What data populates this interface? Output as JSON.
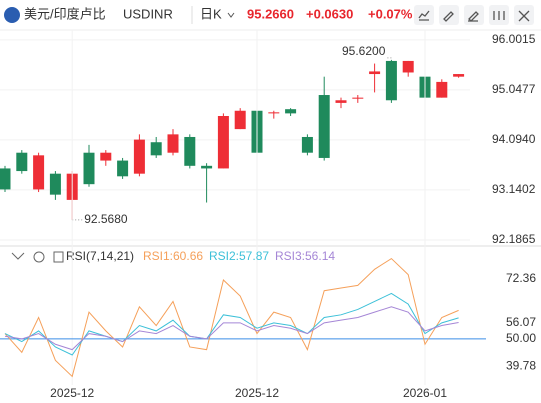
{
  "header": {
    "title": "美元/印度卢比",
    "symbol": "USDINR",
    "period": "日K",
    "price": "95.2660",
    "change": "+0.0630",
    "change_pct": "+0.07%"
  },
  "chart_data": [
    {
      "type": "candlestick",
      "categories": [
        null,
        null,
        null,
        null,
        "2025-12",
        null,
        null,
        null,
        null,
        null,
        null,
        null,
        null,
        null,
        null,
        "2025-12",
        null,
        null,
        null,
        null,
        null,
        null,
        null,
        null,
        null,
        "2026-01",
        null,
        null
      ],
      "open": [
        93.55,
        93.85,
        93.15,
        93.45,
        92.95,
        93.85,
        93.7,
        93.7,
        93.45,
        94.05,
        93.85,
        94.15,
        93.6,
        93.55,
        94.3,
        94.65,
        94.6,
        94.68,
        94.15,
        94.95,
        94.8,
        94.88,
        95.35,
        95.6,
        95.38,
        95.3,
        94.9,
        95.3
      ],
      "high": [
        93.6,
        93.9,
        93.85,
        93.5,
        93.5,
        94.0,
        93.9,
        93.75,
        94.2,
        94.15,
        94.3,
        94.2,
        93.65,
        94.6,
        94.7,
        94.9,
        94.65,
        94.7,
        94.2,
        95.3,
        94.9,
        94.95,
        95.55,
        95.62,
        95.6,
        95.35,
        95.25,
        95.35
      ],
      "low": [
        93.1,
        93.45,
        93.1,
        92.95,
        92.568,
        93.2,
        93.6,
        93.35,
        93.4,
        93.75,
        93.8,
        93.55,
        92.9,
        93.55,
        94.3,
        93.8,
        94.5,
        94.55,
        93.8,
        93.7,
        94.7,
        94.8,
        95.0,
        94.8,
        95.3,
        94.85,
        94.9,
        95.28
      ],
      "close": [
        93.15,
        93.5,
        93.8,
        93.05,
        93.45,
        93.25,
        93.85,
        93.4,
        94.1,
        93.8,
        94.2,
        93.6,
        93.55,
        94.55,
        94.65,
        93.85,
        94.62,
        94.6,
        93.85,
        93.75,
        94.85,
        94.9,
        95.4,
        94.85,
        95.6,
        94.9,
        95.2,
        95.35
      ],
      "up_color": "#ee2e36",
      "down_color": "#1f8a5c",
      "ylim": [
        92.09,
        96.19
      ],
      "yticks": [
        96.0015,
        95.0477,
        {
          "value": 94.094,
          "label": "94.0940"
        },
        93.1402,
        92.1865
      ],
      "annotations": [
        {
          "text": "95.6200",
          "value": 95.62
        },
        {
          "text": "92.5680",
          "value": 92.568
        }
      ],
      "grid": true
    },
    {
      "type": "line",
      "title": "RSI(7,14,21)",
      "series": [
        {
          "name": "RSI1:60.66",
          "color": "#f5a05a",
          "values": [
            52,
            45,
            58,
            42,
            36,
            60,
            53,
            47,
            62,
            55,
            64,
            47,
            46,
            72,
            66,
            52,
            60,
            58,
            46,
            68,
            69,
            70,
            76,
            80,
            74,
            48,
            58,
            60.66
          ]
        },
        {
          "name": "RSI2:57.87",
          "color": "#3cc0d8",
          "values": [
            52,
            49,
            53,
            47,
            44,
            53,
            51,
            49,
            55,
            53,
            57,
            51,
            50,
            59,
            58,
            54,
            56,
            55,
            52,
            58,
            59,
            61,
            64,
            67,
            63,
            52,
            56,
            57.87
          ]
        },
        {
          "name": "RSI3:56.14",
          "color": "#a586d6",
          "values": [
            51,
            50,
            52,
            48,
            46,
            52,
            51,
            49,
            53,
            52,
            55,
            51,
            50,
            56,
            56,
            53,
            55,
            54,
            52,
            56,
            57,
            58,
            60,
            62,
            60,
            53,
            55,
            56.14
          ]
        }
      ],
      "ylim": [
        32.8,
        77.6
      ],
      "yticks": [
        72.36,
        56.07,
        {
          "value": 50,
          "label": "50.00"
        },
        39.78
      ],
      "reference_line": {
        "value": 50,
        "color": "#3a8ee6"
      }
    }
  ]
}
